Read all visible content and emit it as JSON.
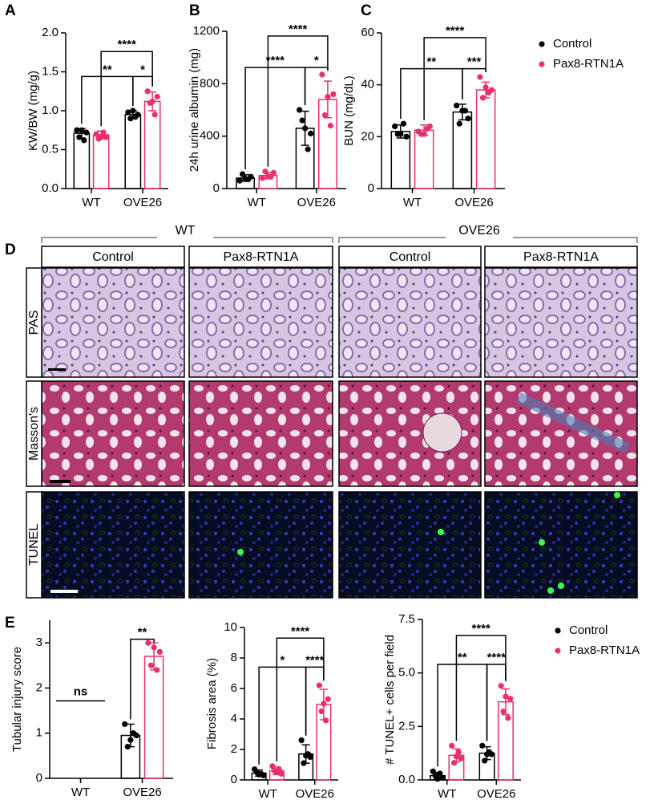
{
  "figure": {
    "panel_labels": [
      "A",
      "B",
      "C",
      "D",
      "E"
    ],
    "group_labels": [
      "WT",
      "OVE26"
    ],
    "column_labels": [
      "Control",
      "Pax8-RTN1A",
      "Control",
      "Pax8-RTN1A"
    ],
    "row_labels": [
      "PAS",
      "Masson's",
      "TUNEL"
    ]
  },
  "chart_data": [
    {
      "type": "bar",
      "ylabel": "KW/BW (mg/g)",
      "categories": [
        "WT",
        "OVE26"
      ],
      "ylim": [
        0,
        2
      ],
      "yticks": [
        {
          "value": 0,
          "label": "0.0"
        },
        {
          "value": 0.5,
          "label": "0.5"
        },
        {
          "value": 1,
          "label": "1.0"
        },
        {
          "value": 1.5,
          "label": "1.5"
        },
        {
          "value": 2,
          "label": "2.0"
        }
      ],
      "series": [
        {
          "color": "#000000",
          "values": [
            0.71,
            0.95
          ],
          "errors": [
            0.06,
            0.05
          ],
          "points": [
            [
              0.75,
              0.72,
              0.66,
              0.62,
              0.75
            ],
            [
              0.98,
              0.95,
              0.9,
              0.92,
              1.0
            ]
          ]
        },
        {
          "color": "#e8306e",
          "values": [
            0.69,
            1.12
          ],
          "errors": [
            0.05,
            0.12
          ],
          "points": [
            [
              0.7,
              0.66,
              0.64,
              0.72,
              0.66
            ],
            [
              1.25,
              1.18,
              1.1,
              0.95,
              1.12
            ]
          ]
        }
      ],
      "annotations": [
        "****",
        "**",
        "*"
      ]
    },
    {
      "type": "bar",
      "ylabel": "24h urine albumin (mg)",
      "categories": [
        "WT",
        "OVE26"
      ],
      "ylim": [
        0,
        1200
      ],
      "yticks": [
        0,
        400,
        800,
        1200
      ],
      "series": [
        {
          "color": "#000000",
          "values": [
            80,
            460
          ],
          "errors": [
            25,
            130
          ],
          "points": [
            [
              60,
              90,
              110,
              70,
              75
            ],
            [
              600,
              420,
              520,
              300,
              460
            ]
          ]
        },
        {
          "color": "#e8306e",
          "values": [
            100,
            680
          ],
          "errors": [
            25,
            140
          ],
          "points": [
            [
              80,
              120,
              130,
              90,
              95
            ],
            [
              870,
              720,
              560,
              480,
              700
            ]
          ]
        }
      ],
      "annotations": [
        "****",
        "****",
        "*"
      ]
    },
    {
      "type": "bar",
      "ylabel": "BUN (mg/dL)",
      "categories": [
        "WT",
        "OVE26"
      ],
      "ylim": [
        0,
        60
      ],
      "yticks": [
        0,
        20,
        40,
        60
      ],
      "legend": true,
      "series": [
        {
          "name": "Control",
          "color": "#000000",
          "values": [
            22,
            29.5
          ],
          "errors": [
            2.5,
            3
          ],
          "points": [
            [
              24,
              20,
              21,
              25,
              21
            ],
            [
              32,
              27,
              25,
              30,
              30
            ]
          ]
        },
        {
          "name": "Pax8-RTN1A",
          "color": "#e8306e",
          "values": [
            22.5,
            38
          ],
          "errors": [
            2,
            3
          ],
          "points": [
            [
              22,
              24,
              21,
              23,
              21
            ],
            [
              43,
              38,
              35,
              37,
              39
            ]
          ]
        }
      ],
      "annotations": [
        "****",
        "**",
        "***"
      ]
    },
    {
      "type": "bar",
      "ylabel": "Tubular injury score",
      "categories": [
        "WT",
        "OVE26"
      ],
      "ylim": [
        0,
        3.5
      ],
      "yticks": [
        0,
        1,
        2,
        3
      ],
      "series": [
        {
          "color": "#000000",
          "values": [
            0,
            0.95
          ],
          "errors": [
            0,
            0.25
          ],
          "points": [
            [],
            [
              1.2,
              0.95,
              0.7,
              1.0,
              0.85
            ]
          ]
        },
        {
          "color": "#e8306e",
          "values": [
            0,
            2.7
          ],
          "errors": [
            0,
            0.3
          ],
          "points": [
            [],
            [
              3.0,
              2.8,
              2.5,
              2.4,
              2.9
            ]
          ]
        }
      ],
      "annotations": [
        "ns",
        "**"
      ]
    },
    {
      "type": "bar",
      "ylabel": "Fibrosis area (%)",
      "categories": [
        "WT",
        "OVE26"
      ],
      "ylim": [
        0,
        10
      ],
      "yticks": [
        0,
        2,
        4,
        6,
        8,
        10
      ],
      "series": [
        {
          "color": "#000000",
          "values": [
            0.45,
            1.7
          ],
          "errors": [
            0.2,
            0.6
          ],
          "points": [
            [
              0.7,
              0.3,
              0.5,
              0.4,
              0.35
            ],
            [
              2.6,
              1.5,
              1.1,
              1.7,
              1.6
            ]
          ]
        },
        {
          "color": "#e8306e",
          "values": [
            0.6,
            4.95
          ],
          "errors": [
            0.25,
            1.0
          ],
          "points": [
            [
              0.9,
              0.4,
              0.6,
              0.7,
              0.5
            ],
            [
              6.2,
              5.3,
              4.5,
              3.9,
              5.0
            ]
          ]
        }
      ],
      "annotations": [
        "****",
        "*",
        "****"
      ]
    },
    {
      "type": "bar",
      "ylabel": "# TUNEL+ cells per field",
      "categories": [
        "WT",
        "OVE26"
      ],
      "ylim": [
        0,
        7.5
      ],
      "yticks": [
        {
          "value": 0,
          "label": "0.0"
        },
        {
          "value": 2.5,
          "label": "2.5"
        },
        {
          "value": 5,
          "label": "5.0"
        },
        {
          "value": 7.5,
          "label": "7.5"
        }
      ],
      "legend": true,
      "series": [
        {
          "name": "Control",
          "color": "#000000",
          "values": [
            0.2,
            1.25
          ],
          "errors": [
            0.15,
            0.3
          ],
          "points": [
            [
              0.4,
              0.1,
              0.2,
              0.3,
              0.05
            ],
            [
              1.6,
              1.2,
              0.9,
              1.3,
              1.2
            ]
          ]
        },
        {
          "name": "Pax8-RTN1A",
          "color": "#e8306e",
          "values": [
            1.15,
            3.65
          ],
          "errors": [
            0.3,
            0.6
          ],
          "points": [
            [
              1.6,
              1.0,
              0.8,
              1.3,
              1.1
            ],
            [
              4.4,
              3.8,
              3.2,
              2.9,
              3.9
            ]
          ]
        }
      ],
      "annotations": [
        "****",
        "**",
        "****"
      ]
    }
  ]
}
